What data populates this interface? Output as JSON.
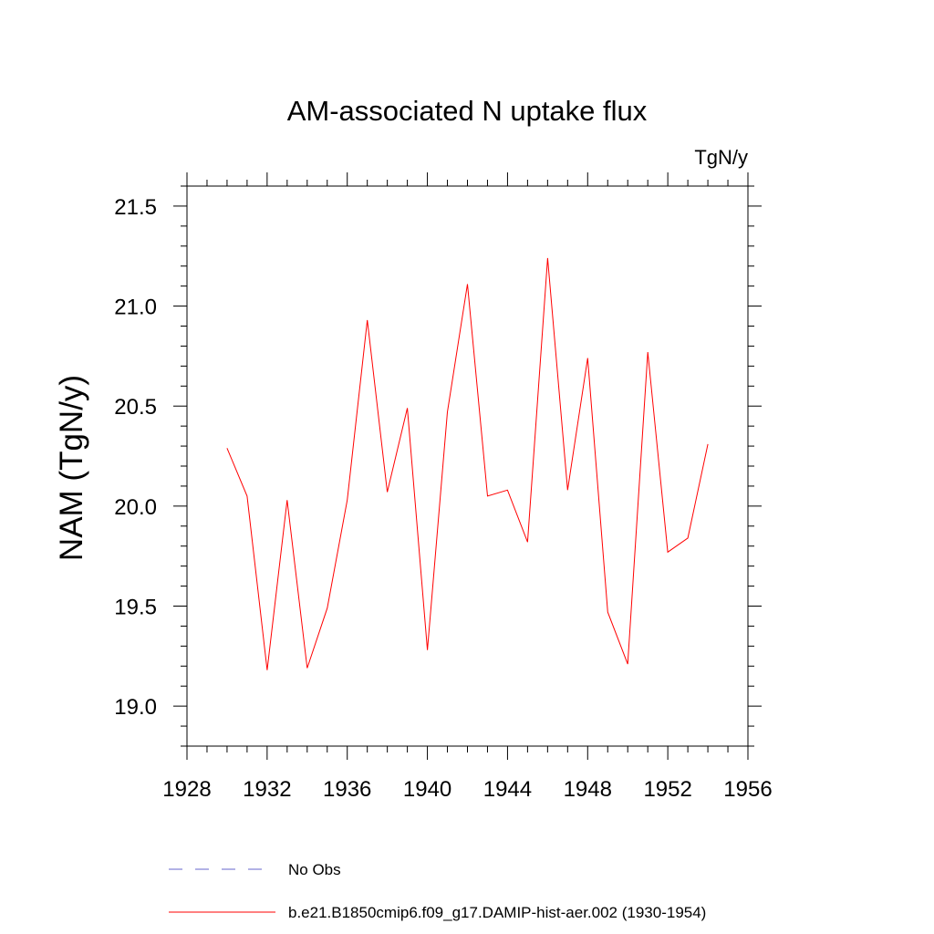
{
  "chart_data": {
    "type": "line",
    "title": "AM-associated N uptake flux",
    "units_label": "TgN/y",
    "ylabel": "NAM  (TgN/y)",
    "xlabel": "",
    "xlim": [
      1928,
      1956
    ],
    "ylim": [
      18.8,
      21.6
    ],
    "x_ticks": [
      1928,
      1932,
      1936,
      1940,
      1944,
      1948,
      1952,
      1956
    ],
    "y_ticks": [
      19.0,
      19.5,
      20.0,
      20.5,
      21.0,
      21.5
    ],
    "x_tick_labels": [
      "1928",
      "1932",
      "1936",
      "1940",
      "1944",
      "1948",
      "1952",
      "1956"
    ],
    "y_tick_labels": [
      "19.0",
      "19.5",
      "20.0",
      "20.5",
      "21.0",
      "21.5"
    ],
    "grid": false,
    "legend_position": "bottom",
    "series": [
      {
        "name": "b.e21.B1850cmip6.f09_g17.DAMIP-hist-aer.002 (1930-1954)",
        "color": "#ff0000",
        "style": "solid",
        "x": [
          1930,
          1931,
          1932,
          1933,
          1934,
          1935,
          1936,
          1937,
          1938,
          1939,
          1940,
          1941,
          1942,
          1943,
          1944,
          1945,
          1946,
          1947,
          1948,
          1949,
          1950,
          1951,
          1952,
          1953,
          1954
        ],
        "y": [
          20.29,
          20.05,
          19.18,
          20.03,
          19.19,
          19.49,
          20.03,
          20.93,
          20.07,
          20.49,
          19.28,
          20.47,
          21.11,
          20.05,
          20.08,
          19.82,
          21.24,
          20.08,
          20.74,
          19.47,
          19.21,
          20.77,
          19.77,
          19.84,
          20.31
        ]
      }
    ],
    "legend": [
      {
        "label": "No Obs",
        "color": "#6666cc",
        "style": "dashed"
      },
      {
        "label": "b.e21.B1850cmip6.f09_g17.DAMIP-hist-aer.002 (1930-1954)",
        "color": "#ff0000",
        "style": "solid"
      }
    ]
  }
}
